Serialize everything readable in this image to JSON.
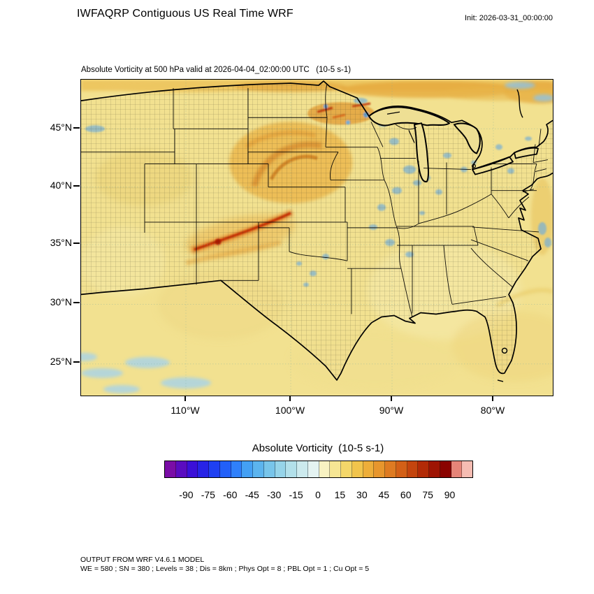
{
  "header": {
    "title": "IWFAQRP Contiguous US Real Time WRF",
    "init": "Init: 2026-03-31_00:00:00"
  },
  "map": {
    "subtitle": "Absolute Vorticity at 500 hPa valid at 2026-04-04_02:00:00 UTC   (10-5 s-1)",
    "lat_ticks": [
      "45°N",
      "40°N",
      "35°N",
      "30°N",
      "25°N"
    ],
    "lon_ticks": [
      "110°W",
      "100°W",
      "90°W",
      "80°W"
    ]
  },
  "colorbar": {
    "title": "Absolute Vorticity  (10-5 s-1)",
    "min": -105,
    "max": 105,
    "tick_values": [
      -90,
      -75,
      -60,
      -45,
      -30,
      -15,
      0,
      15,
      30,
      45,
      60,
      75,
      90
    ],
    "colors": [
      "#7a0da6",
      "#5a0cc0",
      "#3b10d8",
      "#2723e6",
      "#1f40f2",
      "#2260f8",
      "#2f80fa",
      "#44a0f4",
      "#5cb4ee",
      "#78c5ea",
      "#96d4e9",
      "#b2e0ea",
      "#cceaee",
      "#e4f3f2",
      "#f8f2c2",
      "#f6e694",
      "#f4d76a",
      "#f1c44c",
      "#edae3a",
      "#e7962d",
      "#de7b22",
      "#d36017",
      "#c4450e",
      "#b22b07",
      "#9e1403",
      "#8a0300",
      "#e58478",
      "#f5bcb2"
    ]
  },
  "footer": {
    "line1": "OUTPUT FROM WRF V4.6.1 MODEL",
    "line2": "WE = 580 ; SN = 380 ; Levels = 38 ; Dis = 8km ; Phys Opt = 8 ; PBL Opt = 1 ; Cu Opt = 5"
  },
  "chart_data": {
    "type": "heatmap",
    "title": "IWFAQRP Contiguous US Real Time WRF",
    "subtitle": "Absolute Vorticity at 500 hPa valid at 2026-04-04_02:00:00 UTC (10-5 s-1)",
    "init_time": "2026-03-31_00:00:00",
    "valid_time": "2026-04-04_02:00:00 UTC",
    "variable": "Absolute Vorticity",
    "level": "500 hPa",
    "units": "10-5 s-1",
    "region": "Contiguous United States with county and state boundaries",
    "colorbar_range": [
      -105,
      105
    ],
    "colorbar_step": 7.5,
    "colorbar_tick_labels": [
      -90,
      -75,
      -60,
      -45,
      -30,
      -15,
      0,
      15,
      30,
      45,
      60,
      75,
      90
    ],
    "x_axis": {
      "ticks": [
        "110°W",
        "100°W",
        "90°W",
        "80°W"
      ]
    },
    "y_axis": {
      "ticks": [
        "45°N",
        "40°N",
        "35°N",
        "30°N",
        "25°N"
      ]
    },
    "field_description": "Background field of weak positive vorticity (5-15) over most of the domain; strong positive vorticity maximum (30-60) over the Dakotas/Nebraska/Minnesota; narrow intense vorticity streak (75+) from Colorado into Nebraska; orange band of enhanced vorticity along the northern (Canadian) edge; scattered weak negative (blue, -15 to -30) patches across the Midwest, Gulf of Mexico approaches and offshore areas."
  }
}
